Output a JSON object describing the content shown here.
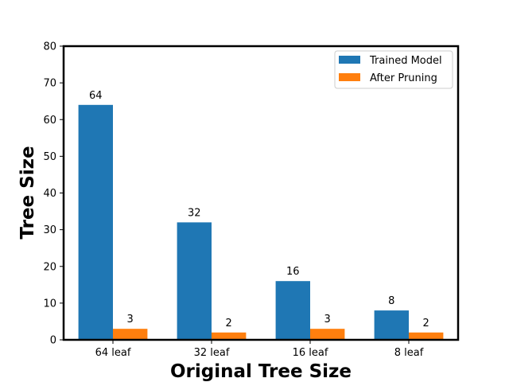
{
  "chart_data": {
    "type": "bar",
    "categories": [
      "64 leaf",
      "32 leaf",
      "16 leaf",
      "8 leaf"
    ],
    "series": [
      {
        "name": "Trained Model",
        "values": [
          64,
          32,
          16,
          8
        ],
        "color": "#1f77b4"
      },
      {
        "name": "After Pruning",
        "values": [
          3,
          2,
          3,
          2
        ],
        "color": "#ff7f0e"
      }
    ],
    "title": "",
    "xlabel": "Original Tree Size",
    "ylabel": "Tree Size",
    "ylim": [
      0,
      80
    ],
    "yticks": [
      0,
      10,
      20,
      30,
      40,
      50,
      60,
      70,
      80
    ],
    "grid": false,
    "legend_position": "top-right",
    "data_labels": true
  }
}
